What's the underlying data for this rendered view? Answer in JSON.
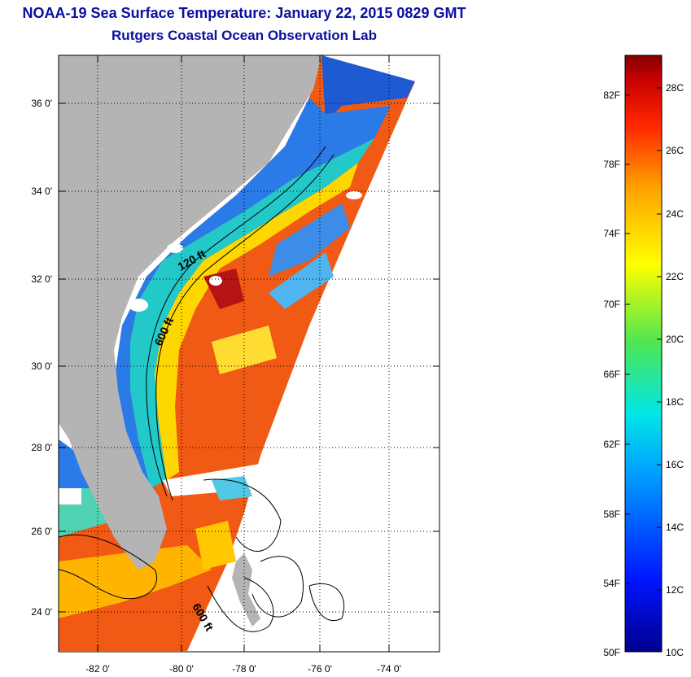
{
  "header": {
    "title": "NOAA-19 Sea Surface Temperature:  January 22, 2015 0829 GMT",
    "subtitle": "Rutgers Coastal Ocean Observation Lab"
  },
  "map": {
    "lat_labels": [
      "36 0'",
      "34 0'",
      "32 0'",
      "30 0'",
      "28 0'",
      "26 0'",
      "24 0'"
    ],
    "lon_labels": [
      "-82 0'",
      "-80 0'",
      "-78 0'",
      "-76 0'",
      "-74 0'"
    ],
    "contour_labels": [
      "120 ft",
      "600 ft",
      "600 ft"
    ],
    "colors": {
      "land": "#b4b4b4",
      "warm": "#f05a14",
      "cool": "#1e5ad2"
    }
  },
  "colorbar": {
    "fahrenheit_labels": [
      "82F",
      "78F",
      "74F",
      "70F",
      "66F",
      "62F",
      "58F",
      "54F",
      "50F"
    ],
    "celsius_labels": [
      "28C",
      "26C",
      "24C",
      "22C",
      "20C",
      "18C",
      "16C",
      "14C",
      "12C",
      "10C"
    ]
  }
}
